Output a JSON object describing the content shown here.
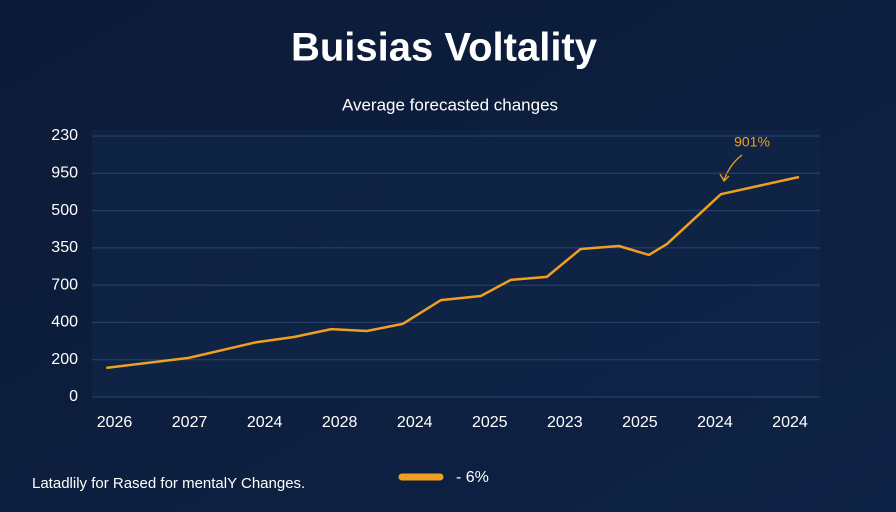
{
  "chart_data": {
    "type": "line",
    "title": "Buisias Voltality",
    "subtitle": "Average forecasted changes",
    "footer": "Latadlily for Rased for mentalY Changes.",
    "annotation": "901%",
    "x": [
      -0.11,
      0.99,
      1.89,
      2.39,
      2.89,
      3.36,
      3.84,
      4.35,
      4.88,
      5.28,
      5.76,
      6.21,
      6.72,
      7.12,
      7.36,
      8.08,
      9.12
    ],
    "xlim": [
      -0.3,
      9.4
    ],
    "xticks": [
      {
        "value": 0,
        "label": "2026"
      },
      {
        "value": 1,
        "label": "2027"
      },
      {
        "value": 2,
        "label": "2024"
      },
      {
        "value": 3,
        "label": "2028"
      },
      {
        "value": 4,
        "label": "2024"
      },
      {
        "value": 5,
        "label": "2025"
      },
      {
        "value": 6,
        "label": "2023"
      },
      {
        "value": 7,
        "label": "2025"
      },
      {
        "value": 8,
        "label": "2024"
      },
      {
        "value": 9,
        "label": "2024"
      }
    ],
    "ylim": [
      0,
      7
    ],
    "yticks": [
      {
        "value": 0,
        "label": "0"
      },
      {
        "value": 1,
        "label": "200"
      },
      {
        "value": 2,
        "label": "400"
      },
      {
        "value": 3,
        "label": "700"
      },
      {
        "value": 4,
        "label": "350"
      },
      {
        "value": 5,
        "label": "500"
      },
      {
        "value": 6,
        "label": "950"
      },
      {
        "value": 7,
        "label": "230"
      }
    ],
    "grid": true,
    "series": [
      {
        "name": "- 6%",
        "color": "#f0a020",
        "values": [
          0.78,
          1.05,
          1.47,
          1.61,
          1.82,
          1.77,
          1.96,
          2.6,
          2.71,
          3.14,
          3.22,
          3.97,
          4.05,
          3.81,
          4.1,
          5.44,
          5.9
        ]
      }
    ]
  }
}
